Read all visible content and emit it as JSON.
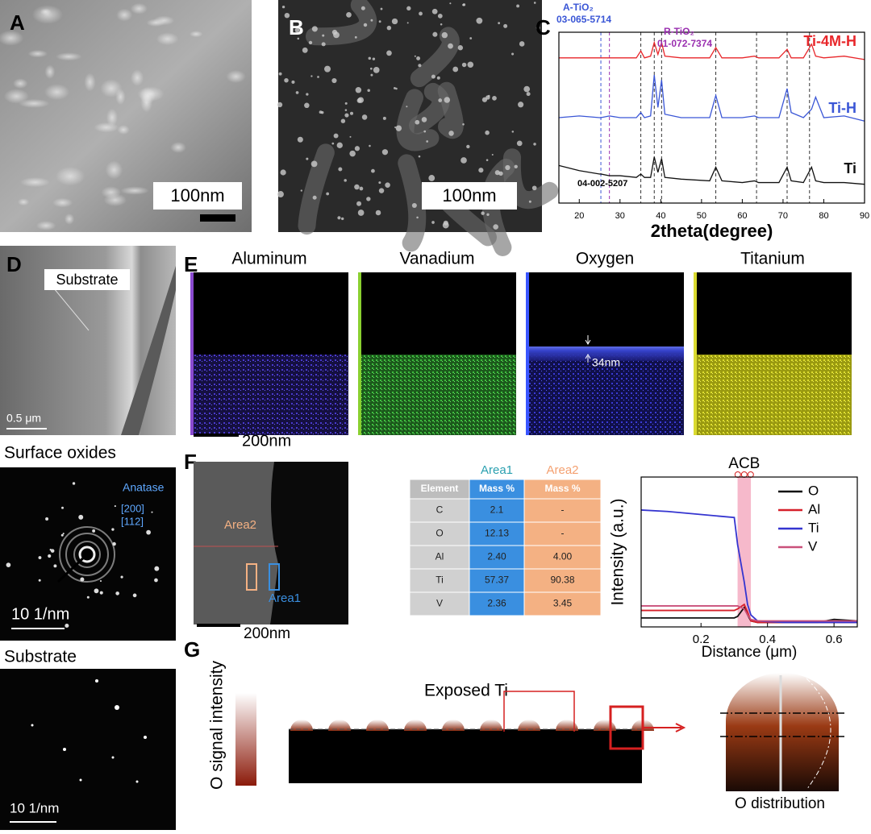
{
  "chart_data": [
    {
      "type": "line",
      "label": "C",
      "xlabel": "2theta(degree)",
      "xlim": [
        15,
        90
      ],
      "xticks": [
        20,
        30,
        40,
        50,
        60,
        70,
        80,
        90
      ],
      "ylim": [
        0,
        100
      ],
      "x": [
        15,
        20,
        25,
        25.3,
        27.4,
        30,
        34,
        35.1,
        36,
        37.5,
        38.4,
        39.3,
        40.2,
        41,
        45,
        52,
        53.5,
        55,
        60,
        63,
        64,
        69,
        71,
        72,
        75,
        77,
        78,
        80,
        85,
        90
      ],
      "series": [
        {
          "name": "Ti-4M-H",
          "color": "#e8262a",
          "values": [
            85,
            85,
            85,
            85,
            85,
            85,
            85,
            89,
            85,
            86,
            94,
            87,
            94,
            86,
            85,
            85,
            91,
            85,
            85,
            86,
            85,
            85,
            90,
            85,
            85,
            93,
            86,
            85,
            86,
            84
          ]
        },
        {
          "name": "Ti-H",
          "color": "#3a56d6",
          "values": [
            50,
            51,
            50,
            50,
            51,
            50,
            50,
            53,
            50,
            51,
            75,
            56,
            72,
            52,
            50,
            50,
            63,
            50,
            50,
            51,
            50,
            50,
            67,
            53,
            50,
            55,
            62,
            50,
            51,
            48
          ]
        },
        {
          "name": "Ti",
          "color": "#111111",
          "values": [
            22,
            19,
            17,
            17,
            16,
            16,
            15,
            17,
            15,
            15,
            27,
            18,
            26,
            15,
            14,
            13,
            21,
            13,
            12,
            13,
            12,
            12,
            21,
            13,
            12,
            21,
            13,
            12,
            12,
            11
          ]
        }
      ],
      "reference_lines": [
        {
          "x": 25.3,
          "color": "#3a56d6"
        },
        {
          "x": 27.4,
          "color": "#9a2fb0"
        },
        {
          "x": 35.1,
          "color": "#333333"
        },
        {
          "x": 38.4,
          "color": "#333333"
        },
        {
          "x": 40.2,
          "color": "#333333"
        },
        {
          "x": 53.5,
          "color": "#333333"
        },
        {
          "x": 63.5,
          "color": "#333333"
        },
        {
          "x": 71,
          "color": "#333333"
        },
        {
          "x": 76.5,
          "color": "#333333"
        }
      ],
      "phases": [
        {
          "name": "A-TiO₂",
          "card": "03-065-5714",
          "color": "#3a56d6"
        },
        {
          "name": "R-TiO₂",
          "card": "01-072-7374",
          "color": "#9a2fb0"
        }
      ],
      "ti_card": "04-002-5207"
    },
    {
      "type": "line",
      "ylabel": "Intensity (a.u.)",
      "xlabel": "Distance (μm)",
      "xlim": [
        0.02,
        0.67
      ],
      "xticks": [
        0.2,
        0.4,
        0.6
      ],
      "ylim": [
        0,
        100
      ],
      "x": [
        0.02,
        0.1,
        0.2,
        0.3,
        0.31,
        0.33,
        0.34,
        0.35,
        0.37,
        0.45,
        0.55,
        0.6,
        0.67
      ],
      "series": [
        {
          "name": "O",
          "color": "#111111",
          "values": [
            6,
            6,
            6,
            6,
            7,
            13,
            8,
            4,
            3,
            3,
            3,
            5,
            4
          ]
        },
        {
          "name": "Al",
          "color": "#d6202a",
          "values": [
            11,
            11,
            11,
            11,
            12,
            15,
            10,
            4,
            3,
            3,
            3,
            3,
            3
          ]
        },
        {
          "name": "Ti",
          "color": "#3535d0",
          "values": [
            78,
            77,
            75,
            73,
            55,
            30,
            15,
            8,
            4,
            3,
            3,
            3,
            3
          ]
        },
        {
          "name": "V",
          "color": "#c9507a",
          "values": [
            14,
            14,
            14,
            14,
            14,
            12,
            8,
            5,
            4,
            4,
            4,
            4,
            4
          ]
        }
      ],
      "highlight": [
        0.31,
        0.35
      ],
      "annotation": "ACB"
    }
  ],
  "panel_a": {
    "label": "A",
    "scale": "100nm"
  },
  "panel_b": {
    "label": "B",
    "scale": "100nm"
  },
  "panel_d": {
    "label": "D",
    "callout": "Substrate",
    "scale": "0.5 μm"
  },
  "panel_e": {
    "label": "E",
    "maps": [
      "Aluminum",
      "Vanadium",
      "Oxygen",
      "Titanium"
    ],
    "thickness": "34nm",
    "scale": "200nm"
  },
  "saed": {
    "surface_title": "Surface oxides",
    "phase": "Anatase",
    "planes": [
      "[200]",
      "[112]"
    ],
    "surface_scale": "10 1/nm",
    "substrate_title": "Substrate",
    "substrate_scale": "10 1/nm"
  },
  "panel_f": {
    "label": "F",
    "areas": [
      "Area2",
      "Area1"
    ],
    "scale": "200nm",
    "table": {
      "group_headers": [
        "Area1",
        "Area2"
      ],
      "columns": [
        "Element",
        "Mass %",
        "Mass %"
      ],
      "rows": [
        [
          "C",
          "2.1",
          "-"
        ],
        [
          "O",
          "12.13",
          "-"
        ],
        [
          "Al",
          "2.40",
          "4.00"
        ],
        [
          "Ti",
          "57.37",
          "90.38"
        ],
        [
          "V",
          "2.36",
          "3.45"
        ]
      ]
    }
  },
  "panel_g": {
    "label": "G",
    "intensity": "O signal intensity",
    "callout": "Exposed Ti",
    "zoom_title": "O distribution"
  }
}
